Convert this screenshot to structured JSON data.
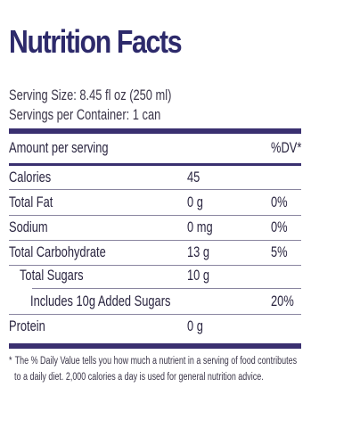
{
  "title": "Nutrition Facts",
  "serving_size": "Serving Size: 8.45 fl oz (250 ml)",
  "servings_per_container": "Servings per Container: 1 can",
  "header": {
    "amount_per_serving": "Amount per serving",
    "dv": "%DV*"
  },
  "rows": [
    {
      "name": "Calories",
      "amount": "45",
      "dv": ""
    },
    {
      "name": "Total Fat",
      "amount": "0 g",
      "dv": "0%"
    },
    {
      "name": "Sodium",
      "amount": "0 mg",
      "dv": "0%"
    },
    {
      "name": "Total Carbohydrate",
      "amount": "13 g",
      "dv": "5%"
    },
    {
      "name": "Total Sugars",
      "amount": "10 g",
      "dv": ""
    },
    {
      "name": "Includes 10g Added Sugars",
      "amount": "",
      "dv": "20%"
    },
    {
      "name": "Protein",
      "amount": "0 g",
      "dv": ""
    }
  ],
  "footnote": {
    "star": "*",
    "line1": "The % Daily Value tells you how much a nutrient in a serving of food contributes",
    "line2": "to a daily diet. 2,000 calories a day is used for general nutrition advice."
  }
}
